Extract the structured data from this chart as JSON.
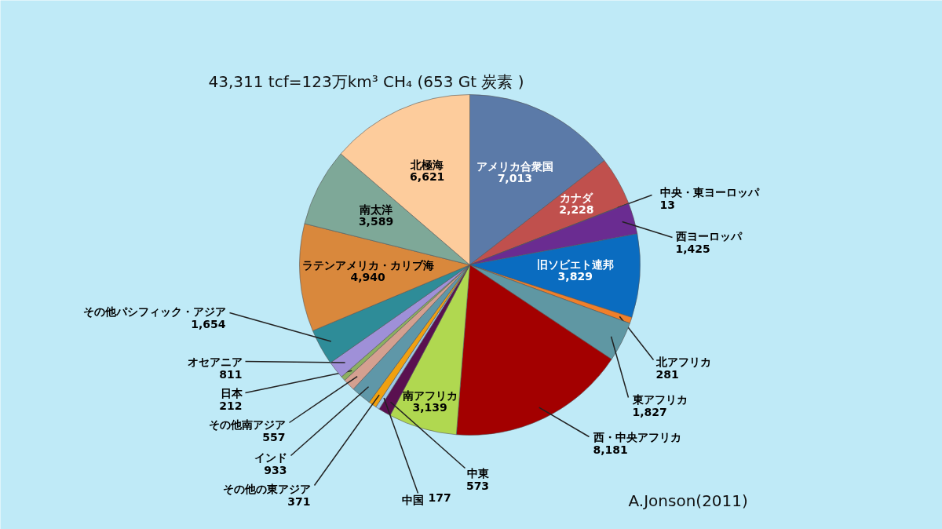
{
  "chart_data": {
    "type": "pie",
    "title": "43,311 tcf=123万km³ CH₄ (653 Gt 炭素 )",
    "categories": [
      "アメリカ合衆国",
      "カナダ",
      "中央・東ヨーロッパ",
      "西ヨーロッパ",
      "旧ソビエト連邦",
      "北アフリカ",
      "東アフリカ",
      "西・中央アフリカ",
      "南アフリカ",
      "中東",
      "中国",
      "その他の東アジア",
      "インド",
      "その他南アジア",
      "日本",
      "オセアニア",
      "その他パシフィック・アジア",
      "ラテンアメリカ・カリブ海",
      "南太洋",
      "北極海"
    ],
    "values": [
      7013,
      2228,
      13,
      1425,
      3829,
      281,
      1827,
      8181,
      3139,
      573,
      177,
      371,
      933,
      557,
      212,
      811,
      1654,
      4940,
      3589,
      6621
    ],
    "colors": [
      "#5b7aa8",
      "#c0504d",
      "#4e8a2a",
      "#6a2c91",
      "#0a6cc0",
      "#f07f2a",
      "#5f97a3",
      "#a30000",
      "#b0d850",
      "#5a1050",
      "#9cc8e8",
      "#f0a010",
      "#5f97a8",
      "#d4a090",
      "#8cb060",
      "#9f90d8",
      "#2e8c98",
      "#d9883c",
      "#7ea898",
      "#fdcc9c"
    ],
    "value_labels": [
      "7,013",
      "2,228",
      "13",
      "1,425",
      "3,829",
      "281",
      "1,827",
      "8,181",
      "3,139",
      "573",
      "177",
      "371",
      "933",
      "557",
      "212",
      "811",
      "1,654",
      "4,940",
      "3,589",
      "6,621"
    ],
    "annotations": [
      "A.Jonson(2011)"
    ]
  }
}
